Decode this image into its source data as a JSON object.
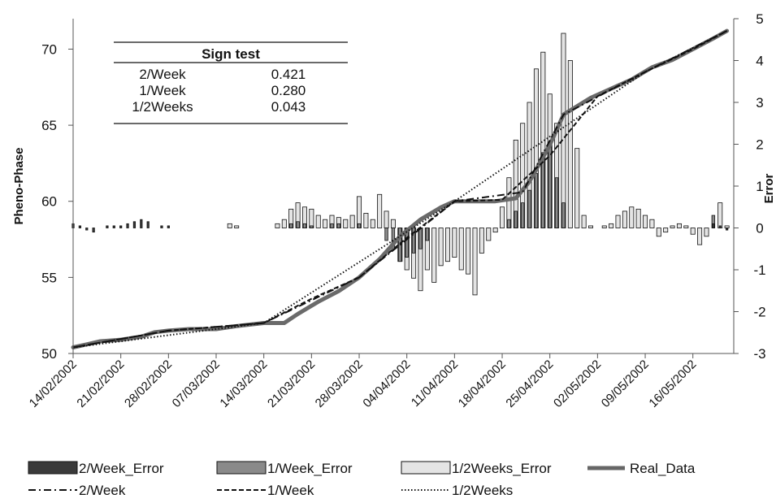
{
  "chart_data": {
    "type": "bar+line",
    "ylabel_left": "Pheno-Phase",
    "ylabel_right": "Error",
    "ylim_left": [
      50,
      72
    ],
    "ylim_right": [
      -3,
      5
    ],
    "yticks_left": [
      "50",
      "55",
      "60",
      "65",
      "70"
    ],
    "yticks_right": [
      "-3",
      "-2",
      "-1",
      "0",
      "1",
      "2",
      "3",
      "4",
      "5"
    ],
    "x_start": "2002-02-14",
    "x_end": "2002-05-22",
    "xticks": [
      "14/02/2002",
      "21/02/2002",
      "28/02/2002",
      "07/03/2002",
      "14/03/2002",
      "21/03/2002",
      "28/03/2002",
      "04/04/2002",
      "11/04/2002",
      "18/04/2002",
      "25/04/2002",
      "02/05/2002",
      "09/05/2002",
      "16/05/2002"
    ],
    "sign_test": {
      "title": "Sign test",
      "rows": [
        {
          "label": "2/Week",
          "value": "0.421"
        },
        {
          "label": "1/Week",
          "value": "0.280"
        },
        {
          "label": "1/2Weeks",
          "value": "0.043"
        }
      ]
    },
    "legend": [
      {
        "name": "2/Week_Error",
        "kind": "box",
        "color": "#3a3a3a"
      },
      {
        "name": "1/Week_Error",
        "kind": "box",
        "color": "#8a8a8a"
      },
      {
        "name": "1/2Weeks_Error",
        "kind": "box",
        "color": "#e4e4e4"
      },
      {
        "name": "Real_Data",
        "kind": "line",
        "color": "#666666"
      },
      {
        "name": "2/Week",
        "kind": "dashdot",
        "color": "#111111"
      },
      {
        "name": "1/Week",
        "kind": "dashed",
        "color": "#111111"
      },
      {
        "name": "1/2Weeks",
        "kind": "dotted",
        "color": "#111111"
      }
    ],
    "real_data": {
      "name": "Real_Data",
      "points": [
        [
          "2002-02-14",
          50.4
        ],
        [
          "2002-02-16",
          50.6
        ],
        [
          "2002-02-18",
          50.8
        ],
        [
          "2002-02-21",
          50.9
        ],
        [
          "2002-02-24",
          51.1
        ],
        [
          "2002-02-26",
          51.4
        ],
        [
          "2002-02-28",
          51.5
        ],
        [
          "2002-03-03",
          51.6
        ],
        [
          "2002-03-07",
          51.6
        ],
        [
          "2002-03-10",
          51.8
        ],
        [
          "2002-03-14",
          52.0
        ],
        [
          "2002-03-17",
          52.0
        ],
        [
          "2002-03-19",
          52.6
        ],
        [
          "2002-03-22",
          53.4
        ],
        [
          "2002-03-25",
          54.1
        ],
        [
          "2002-03-28",
          55.0
        ],
        [
          "2002-03-31",
          56.2
        ],
        [
          "2002-04-03",
          57.7
        ],
        [
          "2002-04-06",
          58.8
        ],
        [
          "2002-04-09",
          59.6
        ],
        [
          "2002-04-11",
          60.0
        ],
        [
          "2002-04-14",
          60.0
        ],
        [
          "2002-04-17",
          60.0
        ],
        [
          "2002-04-20",
          60.2
        ],
        [
          "2002-04-22",
          61.3
        ],
        [
          "2002-04-25",
          63.7
        ],
        [
          "2002-04-27",
          65.7
        ],
        [
          "2002-05-01",
          66.8
        ],
        [
          "2002-05-04",
          67.4
        ],
        [
          "2002-05-07",
          68.0
        ],
        [
          "2002-05-10",
          68.8
        ],
        [
          "2002-05-13",
          69.3
        ],
        [
          "2002-05-16",
          70.0
        ],
        [
          "2002-05-19",
          70.7
        ],
        [
          "2002-05-21",
          71.2
        ]
      ]
    },
    "series_lines": [
      {
        "name": "2/Week",
        "style": "dashdot",
        "points": [
          [
            "2002-02-14",
            50.4
          ],
          [
            "2002-02-28",
            51.5
          ],
          [
            "2002-03-14",
            52.0
          ],
          [
            "2002-03-28",
            55.0
          ],
          [
            "2002-04-11",
            60.0
          ],
          [
            "2002-04-21",
            60.6
          ],
          [
            "2002-04-27",
            65.7
          ],
          [
            "2002-05-09",
            68.5
          ],
          [
            "2002-05-21",
            71.2
          ]
        ]
      },
      {
        "name": "1/Week",
        "style": "dashed",
        "points": [
          [
            "2002-02-14",
            50.4
          ],
          [
            "2002-02-28",
            51.5
          ],
          [
            "2002-03-14",
            52.0
          ],
          [
            "2002-03-21",
            53.6
          ],
          [
            "2002-03-28",
            55.0
          ],
          [
            "2002-04-04",
            57.6
          ],
          [
            "2002-04-11",
            60.0
          ],
          [
            "2002-04-18",
            60.1
          ],
          [
            "2002-04-25",
            63.0
          ],
          [
            "2002-05-02",
            66.9
          ],
          [
            "2002-05-09",
            68.5
          ],
          [
            "2002-05-16",
            70.0
          ],
          [
            "2002-05-21",
            71.2
          ]
        ]
      },
      {
        "name": "1/2Weeks",
        "style": "dotted",
        "points": [
          [
            "2002-02-14",
            50.4
          ],
          [
            "2002-03-14",
            52.0
          ],
          [
            "2002-04-11",
            60.0
          ],
          [
            "2002-05-09",
            68.5
          ],
          [
            "2002-05-21",
            71.2
          ]
        ]
      }
    ],
    "error_bars": {
      "x": [
        "2002-02-14",
        "2002-02-15",
        "2002-02-16",
        "2002-02-17",
        "2002-02-18",
        "2002-02-19",
        "2002-02-20",
        "2002-02-21",
        "2002-02-22",
        "2002-02-23",
        "2002-02-24",
        "2002-02-25",
        "2002-02-26",
        "2002-02-27",
        "2002-02-28",
        "2002-03-01",
        "2002-03-02",
        "2002-03-03",
        "2002-03-04",
        "2002-03-05",
        "2002-03-06",
        "2002-03-07",
        "2002-03-08",
        "2002-03-09",
        "2002-03-10",
        "2002-03-11",
        "2002-03-12",
        "2002-03-13",
        "2002-03-14",
        "2002-03-15",
        "2002-03-16",
        "2002-03-17",
        "2002-03-18",
        "2002-03-19",
        "2002-03-20",
        "2002-03-21",
        "2002-03-22",
        "2002-03-23",
        "2002-03-24",
        "2002-03-25",
        "2002-03-26",
        "2002-03-27",
        "2002-03-28",
        "2002-03-29",
        "2002-03-30",
        "2002-03-31",
        "2002-04-01",
        "2002-04-02",
        "2002-04-03",
        "2002-04-04",
        "2002-04-05",
        "2002-04-06",
        "2002-04-07",
        "2002-04-08",
        "2002-04-09",
        "2002-04-10",
        "2002-04-11",
        "2002-04-12",
        "2002-04-13",
        "2002-04-14",
        "2002-04-15",
        "2002-04-16",
        "2002-04-17",
        "2002-04-18",
        "2002-04-19",
        "2002-04-20",
        "2002-04-21",
        "2002-04-22",
        "2002-04-23",
        "2002-04-24",
        "2002-04-25",
        "2002-04-26",
        "2002-04-27",
        "2002-04-28",
        "2002-04-29",
        "2002-04-30",
        "2002-05-01",
        "2002-05-02",
        "2002-05-03",
        "2002-05-04",
        "2002-05-05",
        "2002-05-06",
        "2002-05-07",
        "2002-05-08",
        "2002-05-09",
        "2002-05-10",
        "2002-05-11",
        "2002-05-12",
        "2002-05-13",
        "2002-05-14",
        "2002-05-15",
        "2002-05-16",
        "2002-05-17",
        "2002-05-18",
        "2002-05-19",
        "2002-05-20",
        "2002-05-21"
      ],
      "series": [
        {
          "name": "2/Week_Error",
          "values": [
            0.1,
            0.05,
            -0.05,
            -0.1,
            0.0,
            0.05,
            0.05,
            0.05,
            0.1,
            0.15,
            0.2,
            0.15,
            0.0,
            0.05,
            0.05,
            0.0,
            0.0,
            0.0,
            0.0,
            0.0,
            0.0,
            0.0,
            0.0,
            0.0,
            0.0,
            0.0,
            0.0,
            0.0,
            0.0,
            0.0,
            0.0,
            0.0,
            0.0,
            0.0,
            0.0,
            0.0,
            0.0,
            0.0,
            0.0,
            0.0,
            0.0,
            0.0,
            0.0,
            0.0,
            0.0,
            0.0,
            0.0,
            0.0,
            0.0,
            0.0,
            0.0,
            0.0,
            0.0,
            0.0,
            0.0,
            0.0,
            0.0,
            0.0,
            0.0,
            0.0,
            0.0,
            0.0,
            0.0,
            0.0,
            0.0,
            0.0,
            0.0,
            0.0,
            0.0,
            0.0,
            0.0,
            0.0,
            0.0,
            0.0,
            0.0,
            0.0,
            0.0,
            0.0,
            0.0,
            0.0,
            0.0,
            0.0,
            0.0,
            0.0,
            0.0,
            0.0,
            0.0,
            0.0,
            0.0,
            0.0,
            0.0,
            0.0,
            0.0,
            0.0,
            0.1,
            0.05,
            -0.05
          ]
        },
        {
          "name": "1/Week_Error",
          "values": [
            0.0,
            0.0,
            0.0,
            0.0,
            0.0,
            0.0,
            0.0,
            0.0,
            0.0,
            0.0,
            0.0,
            0.0,
            0.0,
            0.0,
            0.0,
            0.0,
            0.0,
            0.0,
            0.0,
            0.0,
            0.0,
            0.0,
            0.0,
            0.0,
            0.0,
            0.0,
            0.0,
            0.0,
            0.0,
            0.0,
            0.0,
            0.0,
            0.1,
            0.15,
            0.1,
            0.05,
            0.0,
            0.0,
            0.1,
            0.1,
            0.0,
            0.0,
            0.1,
            0.0,
            0.0,
            0.0,
            -0.3,
            -0.5,
            -0.8,
            -0.7,
            -0.6,
            -0.5,
            -0.3,
            0.0,
            0.0,
            0.0,
            0.0,
            0.0,
            0.0,
            0.0,
            0.0,
            0.0,
            0.0,
            0.0,
            0.2,
            0.4,
            0.6,
            0.9,
            1.3,
            1.8,
            2.0,
            1.2,
            0.6,
            0.0,
            0.0,
            0.0,
            0.0,
            0.0,
            0.0,
            0.0,
            0.0,
            0.0,
            0.0,
            0.0,
            0.0,
            0.0,
            0.0,
            0.0,
            0.0,
            0.0,
            0.0,
            0.0,
            0.0,
            0.0,
            0.3,
            0.0,
            0.0
          ]
        },
        {
          "name": "1/2Weeks_Error",
          "values": [
            0.0,
            0.0,
            0.0,
            0.0,
            0.0,
            0.0,
            0.0,
            0.0,
            0.0,
            0.0,
            0.0,
            0.0,
            0.0,
            0.0,
            0.0,
            0.0,
            0.0,
            0.0,
            0.0,
            0.0,
            0.0,
            0.0,
            0.0,
            0.1,
            0.05,
            0.0,
            0.0,
            0.0,
            0.0,
            0.0,
            0.1,
            0.2,
            0.45,
            0.6,
            0.5,
            0.45,
            0.3,
            0.2,
            0.3,
            0.25,
            0.2,
            0.3,
            0.75,
            0.35,
            0.2,
            0.8,
            0.4,
            0.2,
            -0.8,
            -1.0,
            -1.2,
            -1.5,
            -1.0,
            -1.3,
            -0.9,
            -0.8,
            -0.7,
            -1.0,
            -1.1,
            -1.6,
            -0.6,
            -0.3,
            -0.1,
            0.5,
            1.2,
            2.1,
            2.5,
            3.0,
            3.8,
            4.2,
            3.2,
            2.5,
            4.65,
            4.0,
            1.9,
            0.3,
            0.05,
            0.0,
            0.05,
            0.1,
            0.3,
            0.4,
            0.5,
            0.45,
            0.3,
            0.2,
            -0.2,
            -0.1,
            0.05,
            0.1,
            0.05,
            -0.15,
            -0.4,
            -0.2,
            0.0,
            0.6,
            0.05
          ]
        }
      ]
    }
  }
}
